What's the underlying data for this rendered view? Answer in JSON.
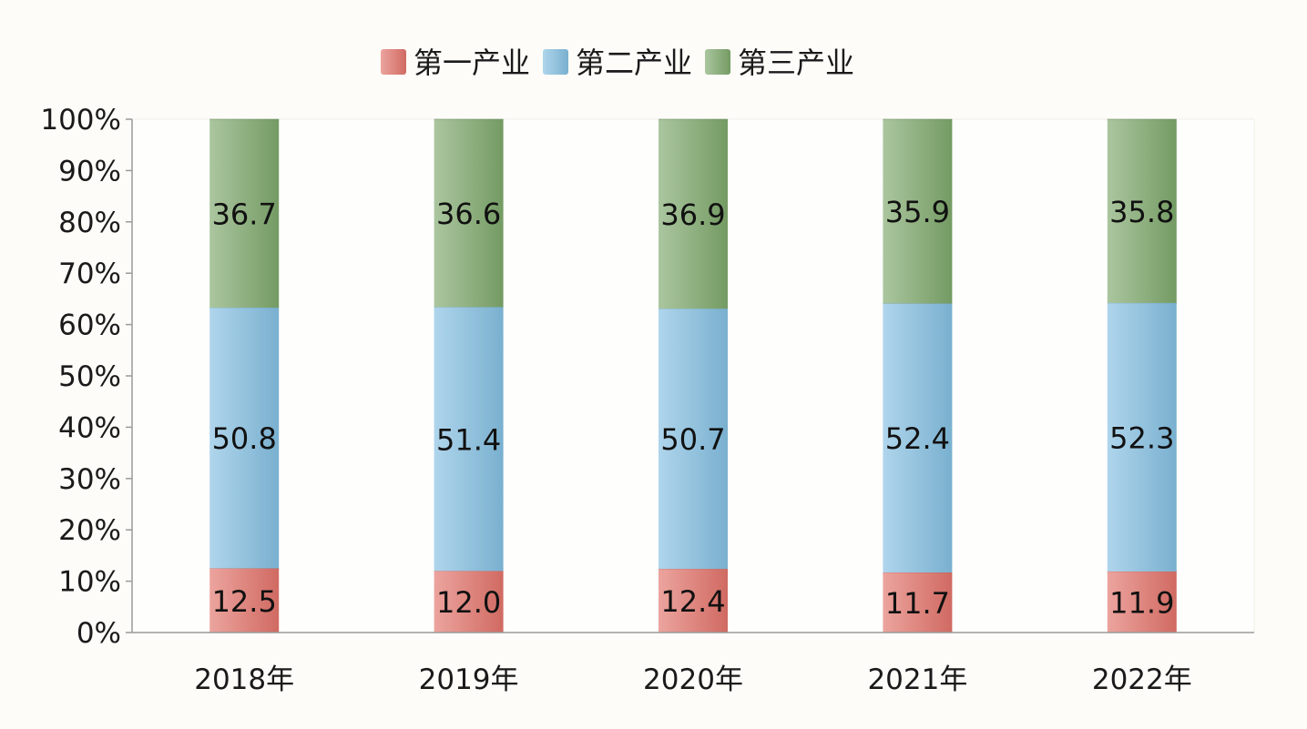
{
  "chart_data": {
    "type": "bar",
    "stacked": true,
    "categories": [
      "2018年",
      "2019年",
      "2020年",
      "2021年",
      "2022年"
    ],
    "series": [
      {
        "name": "第一产业",
        "values": [
          12.5,
          12.0,
          12.4,
          11.7,
          11.9
        ],
        "color": "#e2736a"
      },
      {
        "name": "第二产业",
        "values": [
          50.8,
          51.4,
          50.7,
          52.4,
          52.3
        ],
        "color": "#84bfe1"
      },
      {
        "name": "第三产业",
        "values": [
          36.7,
          36.6,
          36.9,
          35.9,
          35.8
        ],
        "color": "#7ea86c"
      }
    ],
    "y_ticks": [
      "0%",
      "10%",
      "20%",
      "30%",
      "40%",
      "50%",
      "60%",
      "70%",
      "80%",
      "90%",
      "100%"
    ],
    "ylim": [
      0,
      100
    ],
    "legend_position": "top-center",
    "grid": false
  }
}
